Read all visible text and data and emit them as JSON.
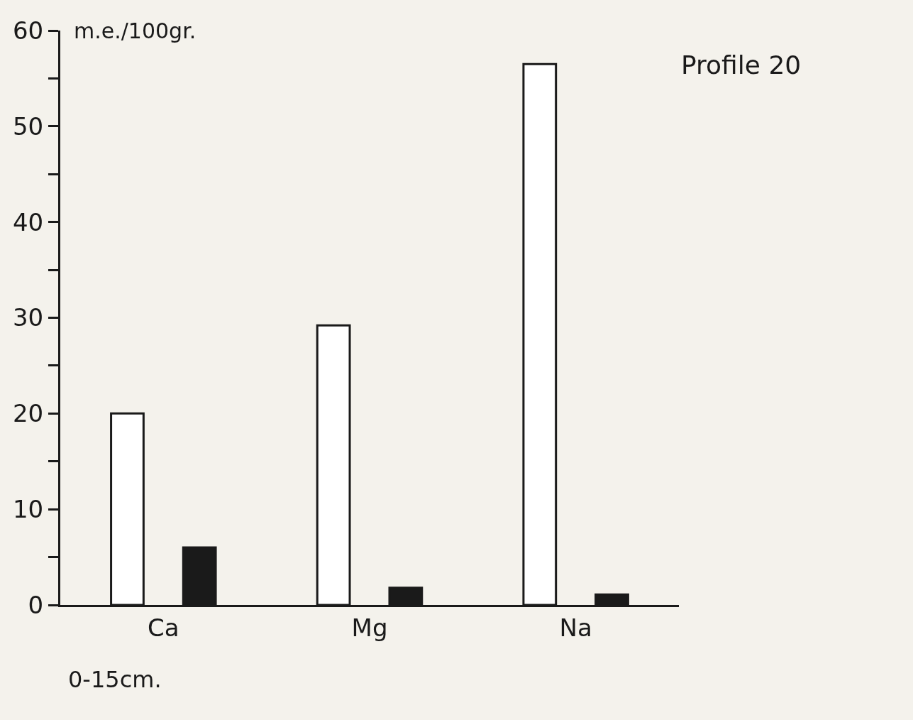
{
  "chart_data": {
    "type": "bar",
    "title": "Profile 20",
    "ylabel": "m.e./100gr.",
    "categories": [
      "Ca",
      "Mg",
      "Na"
    ],
    "series": [
      {
        "color": "#ffffff",
        "values": [
          20,
          29.2,
          56.5
        ]
      },
      {
        "color": "#1a1a1a",
        "values": [
          6,
          1.8,
          1.1
        ]
      }
    ],
    "ylim": [
      0,
      60
    ],
    "yticks": [
      0,
      {
        "value": 5,
        "label": null
      },
      10,
      {
        "value": 15,
        "label": null
      },
      20,
      {
        "value": 25,
        "label": null
      },
      30,
      {
        "value": 35,
        "label": null
      },
      40,
      {
        "value": 45,
        "label": null
      },
      50,
      {
        "value": 55,
        "label": null
      },
      60
    ],
    "annotations": [
      "0-15cm."
    ]
  }
}
